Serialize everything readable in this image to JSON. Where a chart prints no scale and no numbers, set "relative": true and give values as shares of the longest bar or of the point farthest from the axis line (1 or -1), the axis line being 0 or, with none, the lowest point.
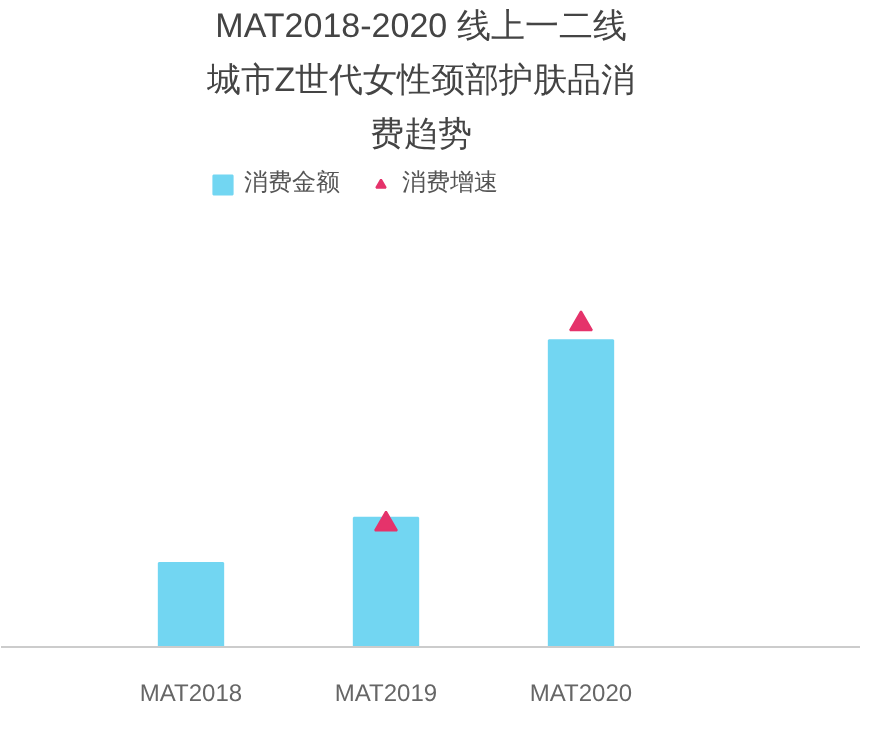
{
  "chart_data": {
    "type": "bar",
    "title": "MAT2018-2020 线上一二线城市Z世代女性颈部护肤品消费趋势",
    "categories": [
      "MAT2018",
      "MAT2019",
      "MAT2020"
    ],
    "relative": true,
    "legend": "top",
    "series": [
      {
        "name": "消费金额",
        "color": "#72d6f2",
        "values": [
          0.26,
          0.4,
          0.95
        ]
      },
      {
        "name": "消费增速",
        "type": "scatter",
        "marker": "triangle",
        "color": "#e5336b",
        "values": [
          null,
          0.38,
          1.0
        ]
      }
    ]
  }
}
